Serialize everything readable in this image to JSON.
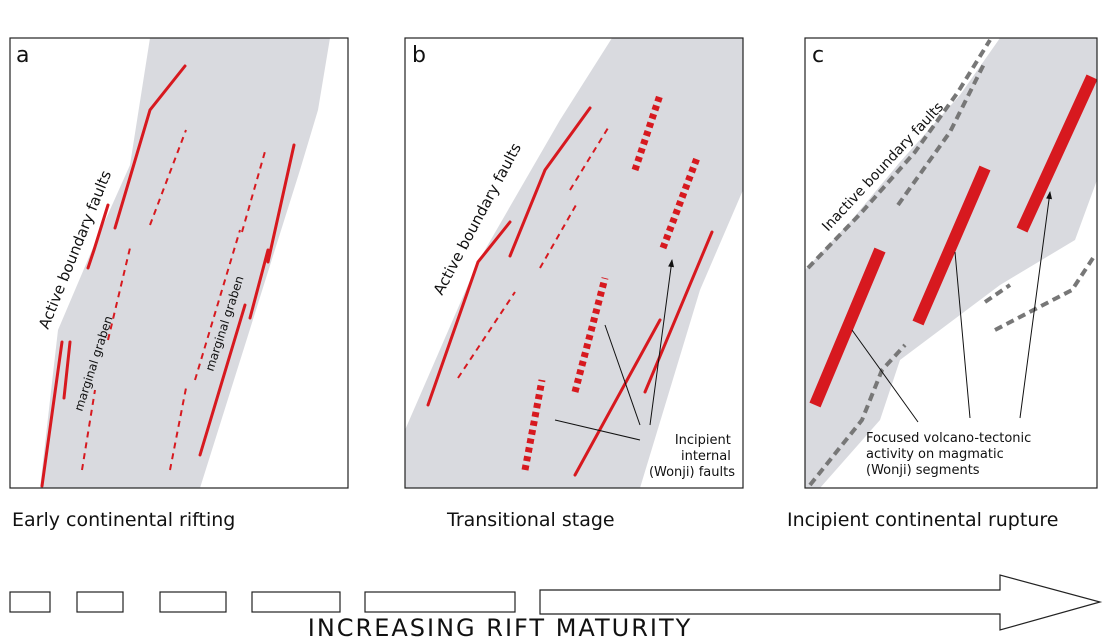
{
  "panels": [
    {
      "letter": "a",
      "caption": "Early continental rifting",
      "labels": [
        "Active boundary faults",
        "marginal graben",
        "marginal graben"
      ]
    },
    {
      "letter": "b",
      "caption": "Transitional stage",
      "labels": [
        "Active boundary faults",
        [
          "Incipient",
          "internal",
          "(Wonji) faults"
        ]
      ]
    },
    {
      "letter": "c",
      "caption": "Incipient continental rupture",
      "labels": [
        "Inactive boundary faults",
        [
          "Focused volcano-tectonic",
          "activity on magmatic",
          "(Wonji) segments"
        ]
      ]
    }
  ],
  "footer": {
    "title": "INCREASING RIFT MATURITY"
  }
}
